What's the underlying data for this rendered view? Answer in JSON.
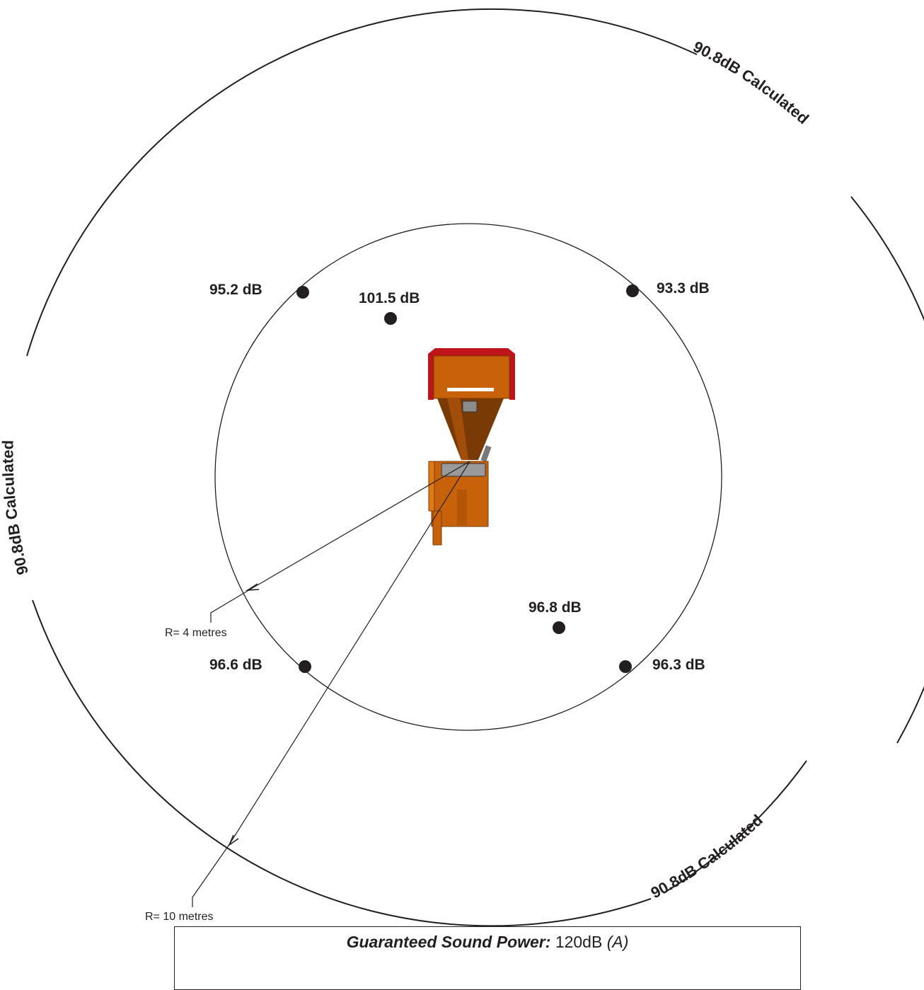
{
  "measurement_points": [
    {
      "label": "95.2 dB"
    },
    {
      "label": "101.5 dB"
    },
    {
      "label": "93.3 dB"
    },
    {
      "label": "96.8 dB"
    },
    {
      "label": "96.6 dB"
    },
    {
      "label": "96.3 dB"
    }
  ],
  "rings": {
    "outer_label": "90.8dB Calculated",
    "inner_radius_label": "R= 4 metres",
    "outer_radius_label": "R= 10 metres"
  },
  "footer": {
    "bold_label": "Guaranteed Sound Power:",
    "value": "120dB",
    "unit": "(A)"
  },
  "colors": {
    "line": "#231f20",
    "machine_orange": "#c8620a",
    "machine_dark": "#7a3a05",
    "machine_red": "#c0141b"
  }
}
